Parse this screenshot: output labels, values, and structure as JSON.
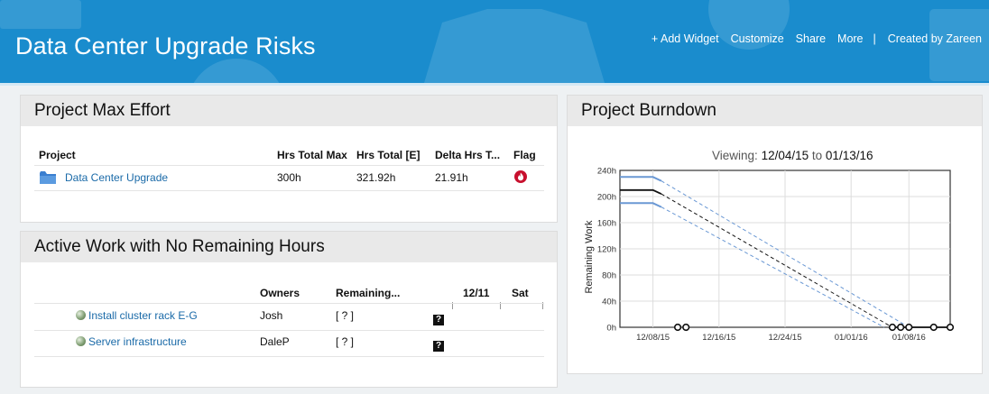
{
  "header": {
    "title": "Data Center Upgrade Risks",
    "actions": [
      "+ Add Widget",
      "Customize",
      "Share",
      "More",
      "|",
      "Created by Zareen"
    ]
  },
  "max_effort": {
    "title": "Project Max Effort",
    "columns": [
      "Project",
      "Hrs Total Max",
      "Hrs Total [E]",
      "Delta Hrs T...",
      "Flag"
    ],
    "rows": [
      {
        "project": "Data Center Upgrade",
        "max": "300h",
        "total": "321.92h",
        "delta": "21.91h",
        "flag_icon": "flame-icon"
      }
    ]
  },
  "active_work": {
    "title": "Active Work with No Remaining Hours",
    "columns": [
      "Owners",
      "Remaining...",
      "12/11",
      "Sat"
    ],
    "rows": [
      {
        "name": "Install cluster rack E-G",
        "owner": "Josh",
        "remaining": "[ ? ]"
      },
      {
        "name": "Server infrastructure",
        "owner": "DaleP",
        "remaining": "[ ? ]"
      }
    ]
  },
  "burndown": {
    "title": "Project Burndown",
    "viewing_label": "Viewing:",
    "from": "12/04/15",
    "to_label": "to",
    "to": "01/13/16"
  },
  "chart_data": {
    "type": "line",
    "ylabel": "Remaining Work",
    "xlabel": "",
    "ylim": [
      0,
      240
    ],
    "yticks": [
      "0h",
      "40h",
      "80h",
      "120h",
      "160h",
      "200h",
      "240h"
    ],
    "xticks": [
      "12/08/15",
      "12/16/15",
      "12/24/15",
      "01/01/16",
      "01/08/16"
    ],
    "grid": true,
    "series": [
      {
        "style": "solid-dark",
        "x": [
          "12/04/15",
          "12/08/15",
          "12/09/15"
        ],
        "y": [
          210,
          210,
          204
        ]
      },
      {
        "style": "solid-blue",
        "x": [
          "12/04/15",
          "12/08/15",
          "12/09/15"
        ],
        "y": [
          230,
          230,
          224
        ]
      },
      {
        "style": "solid-blue",
        "x": [
          "12/04/15",
          "12/08/15",
          "12/09/15"
        ],
        "y": [
          190,
          190,
          184
        ]
      },
      {
        "style": "dashed-dark",
        "x": [
          "12/09/15",
          "01/06/16"
        ],
        "y": [
          204,
          0
        ]
      },
      {
        "style": "dashed-blue",
        "x": [
          "12/09/15",
          "01/08/16"
        ],
        "y": [
          224,
          0
        ]
      },
      {
        "style": "dashed-blue",
        "x": [
          "12/09/15",
          "01/05/16"
        ],
        "y": [
          184,
          0
        ]
      },
      {
        "style": "solid-dark",
        "x": [
          "01/06/16",
          "01/13/16"
        ],
        "y": [
          0,
          0
        ]
      }
    ],
    "markers": {
      "x": [
        "12/11/15",
        "12/12/15",
        "01/06/16",
        "01/07/16",
        "01/08/16",
        "01/11/16",
        "01/13/16"
      ],
      "y": [
        0,
        0,
        0,
        0,
        0,
        0,
        0
      ]
    },
    "colors": {
      "dark": "#111111",
      "blue": "#6a98d4"
    }
  }
}
